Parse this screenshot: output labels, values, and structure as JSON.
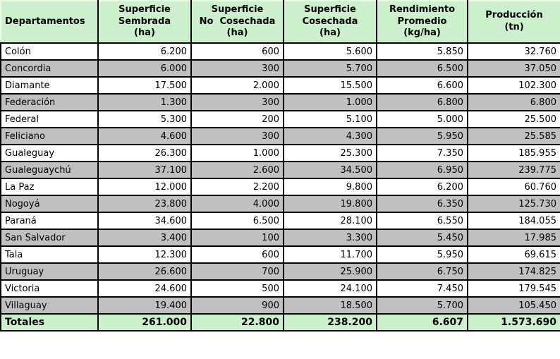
{
  "colors": {
    "header_bg": "#ccefcc",
    "totals_bg": "#ccefcc",
    "row_bg": "#ffffff",
    "row_alt_bg": "#c0c0c0",
    "border": "#000000",
    "text": "#000000"
  },
  "table": {
    "columns": [
      "Departamentos",
      "Superficie\nSembrada\n(ha)",
      "Superficie\nNo  Cosechada\n(ha)",
      "Superficie\nCosechada\n(ha)",
      "Rendimiento\nPromedio\n(kg/ha)",
      "Producción\n(tn)"
    ],
    "rows": [
      {
        "name": "Colón",
        "values": [
          "6.200",
          "600",
          "5.600",
          "5.850",
          "32.760"
        ]
      },
      {
        "name": "Concordia",
        "values": [
          "6.000",
          "300",
          "5.700",
          "6.500",
          "37.050"
        ]
      },
      {
        "name": "Diamante",
        "values": [
          "17.500",
          "2.000",
          "15.500",
          "6.600",
          "102.300"
        ]
      },
      {
        "name": "Federación",
        "values": [
          "1.300",
          "300",
          "1.000",
          "6.800",
          "6.800"
        ]
      },
      {
        "name": "Federal",
        "values": [
          "5.300",
          "200",
          "5.100",
          "5.000",
          "25.500"
        ]
      },
      {
        "name": "Feliciano",
        "values": [
          "4.600",
          "300",
          "4.300",
          "5.950",
          "25.585"
        ]
      },
      {
        "name": "Gualeguay",
        "values": [
          "26.300",
          "1.000",
          "25.300",
          "7.350",
          "185.955"
        ]
      },
      {
        "name": "Gualeguaychú",
        "values": [
          "37.100",
          "2.600",
          "34.500",
          "6.950",
          "239.775"
        ]
      },
      {
        "name": "La Paz",
        "values": [
          "12.000",
          "2.200",
          "9.800",
          "6.200",
          "60.760"
        ]
      },
      {
        "name": "Nogoyá",
        "values": [
          "23.800",
          "4.000",
          "19.800",
          "6.350",
          "125.730"
        ]
      },
      {
        "name": "Paraná",
        "values": [
          "34.600",
          "6.500",
          "28.100",
          "6.550",
          "184.055"
        ]
      },
      {
        "name": "San Salvador",
        "values": [
          "3.400",
          "100",
          "3.300",
          "5.450",
          "17.985"
        ]
      },
      {
        "name": "Tala",
        "values": [
          "12.300",
          "600",
          "11.700",
          "5.950",
          "69.615"
        ]
      },
      {
        "name": "Uruguay",
        "values": [
          "26.600",
          "700",
          "25.900",
          "6.750",
          "174.825"
        ]
      },
      {
        "name": "Victoria",
        "values": [
          "24.600",
          "500",
          "24.100",
          "7.450",
          "179.545"
        ]
      },
      {
        "name": "Villaguay",
        "values": [
          "19.400",
          "900",
          "18.500",
          "5.700",
          "105.450"
        ]
      }
    ],
    "totals": {
      "label": "Totales",
      "values": [
        "261.000",
        "22.800",
        "238.200",
        "6.607",
        "1.573.690"
      ]
    }
  },
  "chart_data": {
    "type": "table",
    "title": "",
    "columns": [
      "Departamentos",
      "Superficie Sembrada (ha)",
      "Superficie No Cosechada (ha)",
      "Superficie Cosechada (ha)",
      "Rendimiento Promedio (kg/ha)",
      "Producción (tn)"
    ],
    "rows": [
      [
        "Colón",
        6200,
        600,
        5600,
        5850,
        32760
      ],
      [
        "Concordia",
        6000,
        300,
        5700,
        6500,
        37050
      ],
      [
        "Diamante",
        17500,
        2000,
        15500,
        6600,
        102300
      ],
      [
        "Federación",
        1300,
        300,
        1000,
        6800,
        6800
      ],
      [
        "Federal",
        5300,
        200,
        5100,
        5000,
        25500
      ],
      [
        "Feliciano",
        4600,
        300,
        4300,
        5950,
        25585
      ],
      [
        "Gualeguay",
        26300,
        1000,
        25300,
        7350,
        185955
      ],
      [
        "Gualeguaychú",
        37100,
        2600,
        34500,
        6950,
        239775
      ],
      [
        "La Paz",
        12000,
        2200,
        9800,
        6200,
        60760
      ],
      [
        "Nogoyá",
        23800,
        4000,
        19800,
        6350,
        125730
      ],
      [
        "Paraná",
        34600,
        6500,
        28100,
        6550,
        184055
      ],
      [
        "San Salvador",
        3400,
        100,
        3300,
        5450,
        17985
      ],
      [
        "Tala",
        12300,
        600,
        11700,
        5950,
        69615
      ],
      [
        "Uruguay",
        26600,
        700,
        25900,
        6750,
        174825
      ],
      [
        "Victoria",
        24600,
        500,
        24100,
        7450,
        179545
      ],
      [
        "Villaguay",
        19400,
        900,
        18500,
        5700,
        105450
      ]
    ],
    "totals": [
      "Totales",
      261000,
      22800,
      238200,
      6607,
      1573690
    ]
  }
}
